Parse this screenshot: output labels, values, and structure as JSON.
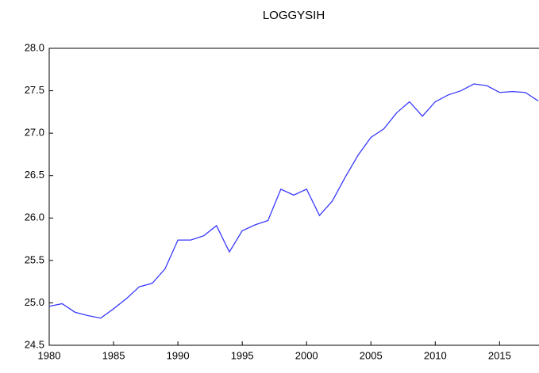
{
  "chart_data": {
    "type": "line",
    "title": "LOGGYSIH",
    "x": [
      1980,
      1981,
      1982,
      1983,
      1984,
      1985,
      1986,
      1987,
      1988,
      1989,
      1990,
      1991,
      1992,
      1993,
      1994,
      1995,
      1996,
      1997,
      1998,
      1999,
      2000,
      2001,
      2002,
      2003,
      2004,
      2005,
      2006,
      2007,
      2008,
      2009,
      2010,
      2011,
      2012,
      2013,
      2014,
      2015,
      2016,
      2017,
      2018
    ],
    "series": [
      {
        "name": "LOGGYSIH",
        "color": "#3a3aff",
        "values": [
          24.96,
          24.99,
          24.89,
          24.85,
          24.82,
          24.93,
          25.05,
          25.19,
          25.23,
          25.4,
          25.74,
          25.74,
          25.79,
          25.91,
          25.6,
          25.85,
          25.92,
          25.97,
          26.34,
          26.27,
          26.34,
          26.03,
          26.2,
          26.48,
          26.74,
          26.95,
          27.05,
          27.24,
          27.37,
          27.2,
          27.37,
          27.45,
          27.5,
          27.58,
          27.56,
          27.48,
          27.49,
          27.48,
          27.38
        ]
      }
    ],
    "xlim": [
      1980,
      2018
    ],
    "xticks": [
      1980,
      1985,
      1990,
      1995,
      2000,
      2005,
      2010,
      2015
    ],
    "ylim": [
      24.5,
      28.0
    ],
    "yticks": [
      {
        "value": 24.5,
        "label": "24.5"
      },
      {
        "value": 25.0,
        "label": "25.0"
      },
      {
        "value": 25.5,
        "label": "25.5"
      },
      {
        "value": 26.0,
        "label": "26.0"
      },
      {
        "value": 26.5,
        "label": "26.5"
      },
      {
        "value": 27.0,
        "label": "27.0"
      },
      {
        "value": 27.5,
        "label": "27.5"
      },
      {
        "value": 28.0,
        "label": "28.0"
      }
    ]
  }
}
